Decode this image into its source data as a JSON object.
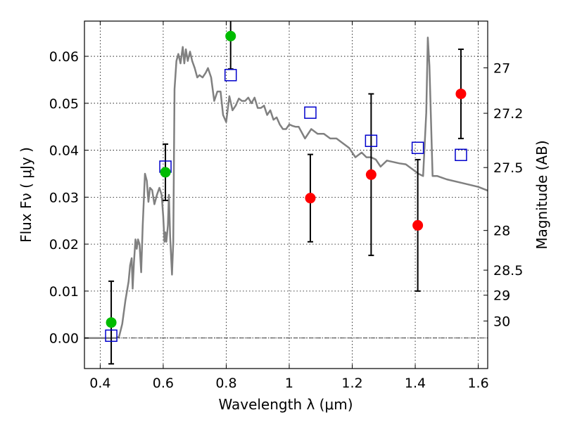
{
  "chart_data": {
    "type": "scatter",
    "xlabel": "Wavelength  λ (μm)",
    "ylabel": "Flux  Fν  ( μJy )",
    "ylabel_right": "Magnitude (AB)",
    "xlim": [
      0.35,
      1.63
    ],
    "ylim": [
      -0.0065,
      0.0675
    ],
    "grid": true,
    "x_ticks": [
      {
        "value": 0.4,
        "label": "0.4"
      },
      {
        "value": 0.6,
        "label": "0.6"
      },
      {
        "value": 0.8,
        "label": "0.8"
      },
      {
        "value": 1.0,
        "label": "1"
      },
      {
        "value": 1.2,
        "label": "1.2"
      },
      {
        "value": 1.4,
        "label": "1.4"
      },
      {
        "value": 1.6,
        "label": "1.6"
      }
    ],
    "y_ticks": [
      {
        "value": 0.0,
        "label": "0.00"
      },
      {
        "value": 0.01,
        "label": "0.01"
      },
      {
        "value": 0.02,
        "label": "0.02"
      },
      {
        "value": 0.03,
        "label": "0.03"
      },
      {
        "value": 0.04,
        "label": "0.04"
      },
      {
        "value": 0.05,
        "label": "0.05"
      },
      {
        "value": 0.06,
        "label": "0.06"
      }
    ],
    "magnitude_ticks": [
      {
        "value": 27,
        "label": "27"
      },
      {
        "value": 27.2,
        "label": "27.2"
      },
      {
        "value": 27.5,
        "label": "27.5"
      },
      {
        "value": 28,
        "label": "28"
      },
      {
        "value": 28.5,
        "label": "28.5"
      },
      {
        "value": 29,
        "label": "29"
      },
      {
        "value": 30,
        "label": "30"
      }
    ],
    "colors": {
      "model": "#808080",
      "detection": "#ff0000",
      "upper_limit_points": "#00bb00",
      "model_band": "#0000cc",
      "errorbar": "#000000"
    },
    "series": [
      {
        "kind": "line",
        "points": [
          [
            0.35,
            0.0
          ],
          [
            0.45,
            0.0
          ],
          [
            0.46,
            0.0003
          ],
          [
            0.47,
            0.003
          ],
          [
            0.48,
            0.008
          ],
          [
            0.49,
            0.012
          ],
          [
            0.495,
            0.0155
          ],
          [
            0.5,
            0.017
          ],
          [
            0.503,
            0.0105
          ],
          [
            0.507,
            0.016
          ],
          [
            0.512,
            0.021
          ],
          [
            0.516,
            0.019
          ],
          [
            0.52,
            0.021
          ],
          [
            0.525,
            0.02
          ],
          [
            0.53,
            0.014
          ],
          [
            0.535,
            0.024
          ],
          [
            0.542,
            0.035
          ],
          [
            0.548,
            0.0335
          ],
          [
            0.553,
            0.029
          ],
          [
            0.558,
            0.032
          ],
          [
            0.565,
            0.0315
          ],
          [
            0.572,
            0.0285
          ],
          [
            0.58,
            0.0305
          ],
          [
            0.588,
            0.032
          ],
          [
            0.595,
            0.0305
          ],
          [
            0.6,
            0.026
          ],
          [
            0.604,
            0.0205
          ],
          [
            0.607,
            0.0225
          ],
          [
            0.61,
            0.0205
          ],
          [
            0.615,
            0.024
          ],
          [
            0.618,
            0.0305
          ],
          [
            0.622,
            0.0215
          ],
          [
            0.628,
            0.0135
          ],
          [
            0.632,
            0.0205
          ],
          [
            0.636,
            0.053
          ],
          [
            0.642,
            0.059
          ],
          [
            0.648,
            0.0605
          ],
          [
            0.655,
            0.0585
          ],
          [
            0.662,
            0.062
          ],
          [
            0.667,
            0.0585
          ],
          [
            0.672,
            0.0615
          ],
          [
            0.678,
            0.059
          ],
          [
            0.685,
            0.061
          ],
          [
            0.692,
            0.059
          ],
          [
            0.7,
            0.0575
          ],
          [
            0.708,
            0.0555
          ],
          [
            0.715,
            0.056
          ],
          [
            0.725,
            0.0555
          ],
          [
            0.735,
            0.0565
          ],
          [
            0.742,
            0.0575
          ],
          [
            0.752,
            0.0555
          ],
          [
            0.762,
            0.0505
          ],
          [
            0.772,
            0.0525
          ],
          [
            0.782,
            0.0525
          ],
          [
            0.79,
            0.0475
          ],
          [
            0.8,
            0.046
          ],
          [
            0.81,
            0.0515
          ],
          [
            0.82,
            0.0485
          ],
          [
            0.83,
            0.0495
          ],
          [
            0.84,
            0.051
          ],
          [
            0.85,
            0.0505
          ],
          [
            0.86,
            0.0505
          ],
          [
            0.87,
            0.0512
          ],
          [
            0.88,
            0.05
          ],
          [
            0.89,
            0.0512
          ],
          [
            0.9,
            0.049
          ],
          [
            0.91,
            0.049
          ],
          [
            0.92,
            0.0495
          ],
          [
            0.93,
            0.0475
          ],
          [
            0.94,
            0.0485
          ],
          [
            0.95,
            0.0465
          ],
          [
            0.96,
            0.047
          ],
          [
            0.97,
            0.0455
          ],
          [
            0.98,
            0.0445
          ],
          [
            0.99,
            0.0445
          ],
          [
            1.0,
            0.0455
          ],
          [
            1.01,
            0.0452
          ],
          [
            1.02,
            0.045
          ],
          [
            1.03,
            0.045
          ],
          [
            1.05,
            0.0425
          ],
          [
            1.07,
            0.0445
          ],
          [
            1.09,
            0.0435
          ],
          [
            1.11,
            0.0435
          ],
          [
            1.13,
            0.0425
          ],
          [
            1.15,
            0.0425
          ],
          [
            1.17,
            0.0415
          ],
          [
            1.19,
            0.0405
          ],
          [
            1.21,
            0.0385
          ],
          [
            1.23,
            0.0395
          ],
          [
            1.245,
            0.0385
          ],
          [
            1.26,
            0.0385
          ],
          [
            1.275,
            0.038
          ],
          [
            1.29,
            0.0365
          ],
          [
            1.31,
            0.0378
          ],
          [
            1.33,
            0.0375
          ],
          [
            1.35,
            0.0372
          ],
          [
            1.37,
            0.037
          ],
          [
            1.39,
            0.036
          ],
          [
            1.41,
            0.035
          ],
          [
            1.425,
            0.0345
          ],
          [
            1.435,
            0.048
          ],
          [
            1.44,
            0.064
          ],
          [
            1.445,
            0.058
          ],
          [
            1.455,
            0.0345
          ],
          [
            1.47,
            0.0345
          ],
          [
            1.5,
            0.0338
          ],
          [
            1.55,
            0.033
          ],
          [
            1.6,
            0.0322
          ],
          [
            1.63,
            0.0314
          ]
        ]
      },
      {
        "kind": "markers",
        "marker": "square",
        "points": [
          [
            0.435,
            0.0005
          ],
          [
            0.607,
            0.0365
          ],
          [
            0.814,
            0.056
          ],
          [
            1.067,
            0.048
          ],
          [
            1.26,
            0.042
          ],
          [
            1.408,
            0.0405
          ],
          [
            1.545,
            0.039
          ]
        ]
      },
      {
        "kind": "markers",
        "marker": "circle",
        "color_key": "upper_limit_points",
        "points": [
          {
            "x": 0.435,
            "y": 0.0033,
            "err": 0.0088
          },
          {
            "x": 0.607,
            "y": 0.0353,
            "err": 0.006
          },
          {
            "x": 0.814,
            "y": 0.0643,
            "err": 0.007
          }
        ]
      },
      {
        "kind": "markers",
        "marker": "circle",
        "color_key": "detection",
        "points": [
          {
            "x": 1.067,
            "y": 0.0298,
            "err": 0.0093
          },
          {
            "x": 1.26,
            "y": 0.0348,
            "err": 0.0172
          },
          {
            "x": 1.408,
            "y": 0.024,
            "err": 0.014
          },
          {
            "x": 1.545,
            "y": 0.052,
            "err": 0.0095
          }
        ]
      }
    ]
  }
}
